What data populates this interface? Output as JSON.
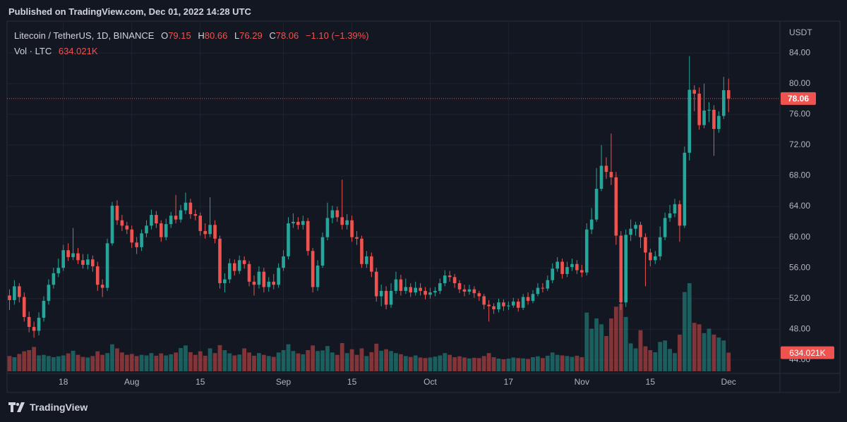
{
  "header": "Published on TradingView.com, Dec 01, 2022 14:28 UTC",
  "brand": "TradingView",
  "chart_data": {
    "type": "candlestick",
    "symbol": "Litecoin / TetherUS, 1D, BINANCE",
    "ohlc_letters": [
      "O",
      "H",
      "L",
      "C"
    ],
    "change": "−1.10",
    "change_percent": "(−1.39%)",
    "volume_title": "Vol · LTC",
    "last_volume_label": "634.021K",
    "currency": "USDT",
    "up_color": "#26a69a",
    "down_color": "#ef5350",
    "grid": true,
    "xlim": [
      -0.5,
      157.5
    ],
    "xticks": [
      {
        "value": 11,
        "label": "18"
      },
      {
        "value": 25,
        "label": "Aug"
      },
      {
        "value": 39,
        "label": "15"
      },
      {
        "value": 56,
        "label": "Sep"
      },
      {
        "value": 70,
        "label": "15"
      },
      {
        "value": 86,
        "label": "Oct"
      },
      {
        "value": 102,
        "label": "17"
      },
      {
        "value": 117,
        "label": "Nov"
      },
      {
        "value": 131,
        "label": "15"
      },
      {
        "value": 147,
        "label": "Dec"
      }
    ],
    "ylim": [
      42.25,
      88.15
    ],
    "yticks": [
      {
        "value": 44,
        "label": "44.00"
      },
      {
        "value": 48,
        "label": "48.00"
      },
      {
        "value": 52,
        "label": "52.00"
      },
      {
        "value": 56,
        "label": "56.00"
      },
      {
        "value": 60,
        "label": "60.00"
      },
      {
        "value": 64,
        "label": "64.00"
      },
      {
        "value": 68,
        "label": "68.00"
      },
      {
        "value": 72,
        "label": "72.00"
      },
      {
        "value": 76,
        "label": "76.00"
      },
      {
        "value": 80,
        "label": "80.00"
      },
      {
        "value": 84,
        "label": "84.00"
      }
    ],
    "open": [
      52.4,
      51.8,
      53.6,
      52.2,
      49.6,
      48.3,
      47.8,
      49.5,
      51.7,
      53.8,
      55.3,
      56.0,
      58.3,
      57.4,
      57.9,
      57.0,
      56.4,
      57.1,
      56.2,
      53.8,
      53.4,
      59.2,
      64.1,
      62.2,
      61.5,
      61.0,
      59.3,
      58.7,
      60.5,
      61.5,
      62.9,
      61.8,
      60.0,
      61.7,
      62.8,
      62.3,
      63.5,
      64.5,
      63.0,
      62.8,
      60.8,
      60.4,
      61.6,
      59.8,
      54.0,
      54.5,
      56.6,
      55.6,
      57.0,
      56.5,
      54.2,
      53.8,
      55.5,
      53.5,
      54.2,
      53.8,
      56.0,
      57.5,
      61.8,
      62.0,
      61.6,
      62.1,
      58.2,
      53.5,
      56.3,
      60.0,
      62.5,
      63.5,
      62.6,
      61.6,
      62.2,
      60.0,
      59.8,
      56.5,
      57.5,
      55.5,
      52.3,
      53.0,
      51.2,
      53.0,
      54.5,
      53.0,
      53.5,
      52.8,
      53.4,
      53.0,
      52.5,
      52.8,
      53.0,
      54.0,
      55.0,
      54.8,
      54.0,
      53.2,
      52.9,
      53.2,
      52.7,
      52.3,
      51.2,
      51.0,
      50.6,
      51.5,
      51.0,
      51.1,
      51.6,
      50.8,
      52.2,
      51.7,
      52.6,
      53.4,
      53.3,
      54.4,
      55.9,
      56.8,
      55.2,
      56.1,
      56.5,
      55.7,
      55.4,
      61.0,
      62.3,
      66.3,
      69.3,
      68.5,
      67.8,
      60.2,
      51.5,
      60.3,
      61.1,
      61.6,
      60.0,
      58.0,
      57.0,
      57.5,
      60.0,
      62.5,
      63.1,
      64.3,
      61.5,
      71.0,
      79.2,
      78.7,
      74.6,
      76.5,
      76.6,
      74.1,
      75.8,
      79.15
    ],
    "high": [
      53.2,
      54.4,
      54.0,
      52.8,
      50.3,
      49.0,
      50.2,
      52.3,
      54.5,
      56.0,
      57.2,
      59.0,
      59.2,
      61.2,
      58.6,
      57.8,
      57.8,
      57.6,
      56.8,
      54.5,
      59.8,
      64.6,
      64.8,
      62.9,
      62.0,
      61.5,
      60.0,
      61.0,
      62.2,
      63.6,
      63.4,
      62.2,
      62.4,
      63.3,
      65.5,
      64.2,
      65.8,
      65.0,
      63.6,
      63.2,
      61.8,
      65.2,
      62.2,
      60.2,
      55.3,
      57.2,
      57.1,
      57.6,
      57.5,
      56.9,
      55.0,
      56.2,
      56.0,
      54.8,
      55.2,
      56.6,
      58.3,
      62.6,
      63.1,
      62.6,
      62.8,
      62.5,
      58.6,
      57.0,
      60.6,
      64.5,
      64.1,
      64.0,
      67.5,
      63.0,
      62.8,
      60.8,
      60.2,
      58.2,
      58.0,
      56.0,
      53.8,
      53.6,
      54.0,
      55.5,
      55.1,
      54.6,
      54.0,
      54.2,
      54.0,
      53.5,
      53.4,
      53.5,
      54.6,
      55.7,
      55.6,
      55.2,
      54.4,
      53.8,
      53.8,
      53.6,
      53.0,
      52.6,
      51.8,
      51.4,
      52.0,
      51.9,
      51.6,
      52.1,
      52.0,
      52.6,
      52.8,
      53.1,
      54.0,
      54.0,
      55.0,
      56.6,
      57.4,
      57.2,
      56.8,
      57.2,
      57.0,
      56.4,
      61.8,
      63.8,
      69.0,
      72.0,
      70.4,
      73.5,
      68.5,
      60.8,
      61.0,
      62.3,
      62.0,
      62.0,
      60.5,
      58.5,
      58.2,
      61.4,
      63.2,
      64.2,
      65.0,
      64.8,
      71.8,
      83.6,
      79.8,
      79.5,
      80.0,
      77.6,
      77.2,
      76.4,
      80.9,
      80.66
    ],
    "low": [
      50.5,
      51.2,
      51.5,
      49.0,
      47.6,
      46.9,
      47.2,
      49.0,
      51.2,
      53.3,
      54.8,
      55.6,
      56.9,
      57.0,
      56.5,
      55.9,
      55.8,
      55.5,
      53.0,
      52.2,
      53.0,
      58.9,
      61.6,
      60.8,
      60.4,
      58.6,
      57.8,
      58.2,
      60.0,
      61.0,
      61.2,
      59.4,
      59.6,
      61.2,
      61.8,
      61.9,
      63.0,
      62.4,
      62.2,
      60.2,
      59.8,
      60.0,
      59.2,
      53.3,
      52.8,
      54.0,
      55.0,
      55.2,
      55.9,
      53.6,
      52.4,
      53.3,
      52.8,
      52.9,
      53.2,
      53.4,
      55.6,
      57.1,
      61.2,
      61.0,
      61.0,
      57.6,
      52.8,
      53.0,
      56.0,
      59.6,
      61.8,
      62.0,
      61.0,
      61.0,
      59.4,
      59.0,
      56.0,
      56.0,
      54.8,
      51.6,
      51.0,
      50.6,
      50.8,
      52.6,
      52.4,
      52.6,
      52.2,
      52.4,
      52.4,
      51.9,
      52.0,
      52.3,
      52.6,
      53.6,
      54.2,
      53.4,
      52.7,
      52.3,
      52.5,
      52.1,
      51.7,
      50.6,
      49.0,
      50.0,
      50.2,
      50.4,
      50.5,
      50.8,
      50.3,
      50.5,
      51.2,
      51.4,
      52.3,
      52.8,
      53.0,
      54.0,
      55.5,
      54.6,
      54.8,
      55.6,
      55.2,
      54.8,
      55.0,
      60.4,
      62.0,
      66.0,
      67.6,
      66.8,
      59.0,
      50.5,
      50.9,
      59.5,
      60.2,
      58.6,
      53.6,
      56.2,
      56.5,
      57.0,
      59.6,
      62.0,
      62.6,
      59.4,
      61.2,
      70.0,
      76.4,
      74.0,
      74.2,
      75.0,
      70.6,
      73.6,
      75.4,
      76.29
    ],
    "close": [
      51.8,
      53.6,
      52.2,
      49.6,
      48.3,
      47.8,
      49.5,
      51.7,
      53.8,
      55.3,
      56.0,
      58.3,
      57.4,
      57.9,
      57.0,
      56.4,
      57.1,
      56.2,
      53.8,
      53.4,
      59.2,
      64.1,
      62.2,
      61.5,
      61.0,
      59.3,
      58.7,
      60.5,
      61.5,
      62.9,
      61.8,
      60.0,
      61.7,
      62.8,
      62.3,
      63.5,
      64.5,
      63.0,
      62.8,
      60.8,
      60.4,
      61.6,
      59.8,
      54.0,
      54.5,
      56.6,
      55.6,
      57.0,
      56.5,
      54.2,
      53.8,
      55.5,
      53.5,
      54.2,
      53.8,
      56.0,
      57.5,
      61.8,
      62.0,
      61.6,
      62.1,
      58.2,
      53.5,
      56.3,
      60.0,
      62.5,
      63.5,
      62.6,
      61.6,
      62.2,
      60.0,
      59.8,
      56.5,
      57.5,
      55.5,
      52.3,
      53.0,
      51.2,
      53.0,
      54.5,
      53.0,
      53.5,
      52.8,
      53.4,
      53.0,
      52.5,
      52.8,
      53.0,
      54.0,
      55.0,
      54.8,
      54.0,
      53.2,
      52.9,
      53.2,
      52.7,
      52.3,
      51.2,
      51.0,
      50.6,
      51.5,
      51.0,
      51.1,
      51.6,
      50.8,
      52.2,
      51.7,
      52.6,
      53.4,
      53.3,
      54.4,
      55.9,
      56.8,
      55.2,
      56.1,
      56.5,
      55.7,
      55.4,
      61.0,
      62.3,
      66.3,
      69.3,
      68.5,
      67.8,
      60.2,
      51.5,
      60.3,
      61.1,
      61.6,
      60.0,
      58.0,
      57.0,
      57.5,
      60.0,
      62.5,
      63.1,
      64.3,
      61.5,
      71.0,
      79.2,
      78.7,
      74.6,
      76.5,
      76.6,
      74.1,
      75.8,
      79.15,
      78.06
    ],
    "volume": [
      520000,
      480000,
      590000,
      680000,
      720000,
      830000,
      540000,
      560000,
      520000,
      480000,
      510000,
      540000,
      610000,
      700000,
      560000,
      490000,
      470000,
      520000,
      680000,
      560000,
      620000,
      920000,
      780000,
      640000,
      560000,
      590000,
      520000,
      560000,
      540000,
      620000,
      530000,
      610000,
      540000,
      580000,
      640000,
      790000,
      880000,
      650000,
      560000,
      680000,
      530000,
      780000,
      620000,
      890000,
      720000,
      610000,
      540000,
      570000,
      780000,
      640000,
      530000,
      620000,
      560000,
      520000,
      490000,
      640000,
      720000,
      920000,
      690000,
      610000,
      580000,
      720000,
      880000,
      690000,
      710000,
      860000,
      640000,
      560000,
      960000,
      620000,
      750000,
      560000,
      780000,
      520000,
      650000,
      940000,
      700000,
      750000,
      690000,
      620000,
      580000,
      520000,
      490000,
      540000,
      470000,
      450000,
      470000,
      500000,
      540000,
      620000,
      560000,
      480000,
      510000,
      470000,
      440000,
      460000,
      450000,
      520000,
      620000,
      480000,
      430000,
      410000,
      430000,
      470000,
      450000,
      440000,
      420000,
      480000,
      510000,
      450000,
      530000,
      640000,
      560000,
      540000,
      520000,
      490000,
      530000,
      480000,
      2000000,
      1450000,
      1800000,
      1600000,
      1200000,
      1800000,
      2200000,
      2300000,
      1850000,
      950000,
      780000,
      1400000,
      850000,
      720000,
      650000,
      1000000,
      1050000,
      760000,
      620000,
      1250000,
      2700000,
      3000000,
      1650000,
      1600000,
      1300000,
      1450000,
      1250000,
      1150000,
      1050000,
      634021
    ]
  }
}
